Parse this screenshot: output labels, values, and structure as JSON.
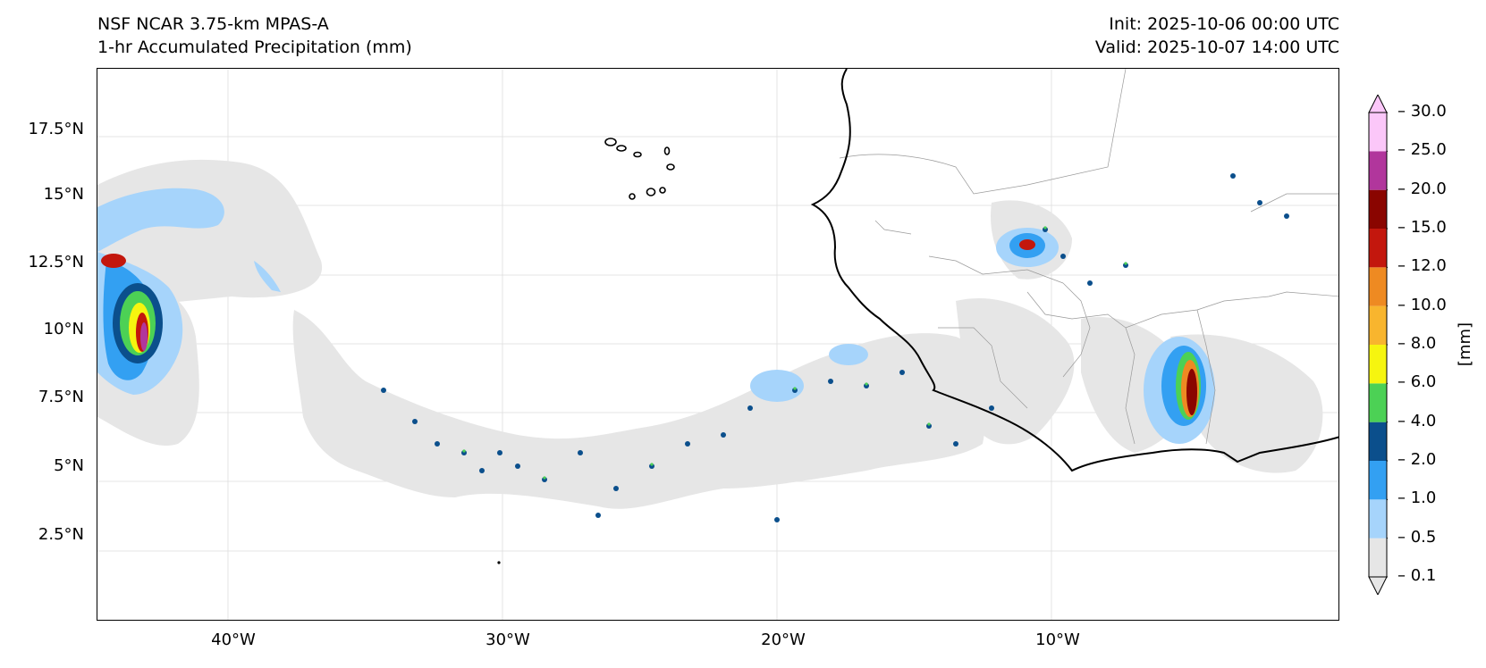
{
  "titles": {
    "model": "NSF NCAR 3.75-km MPAS-A",
    "field": "1-hr Accumulated Precipitation (mm)",
    "init": "Init: 2025-10-06 00:00 UTC",
    "valid": "Valid: 2025-10-07 14:00 UTC"
  },
  "axes": {
    "lat_labels": [
      "17.5°N",
      "15°N",
      "12.5°N",
      "10°N",
      "7.5°N",
      "5°N",
      "2.5°N"
    ],
    "lon_labels": [
      "40°W",
      "30°W",
      "20°W",
      "10°W"
    ]
  },
  "colorbar": {
    "unit": "[mm]",
    "levels": [
      "0.1",
      "0.5",
      "1.0",
      "2.0",
      "4.0",
      "6.0",
      "8.0",
      "10.0",
      "12.0",
      "15.0",
      "20.0",
      "25.0",
      "30.0"
    ],
    "colors": [
      "#e6e6e6",
      "#a6d4fb",
      "#33a0f2",
      "#0b4f8c",
      "#4cd155",
      "#f6f50f",
      "#f8b52e",
      "#ee8a22",
      "#c3170d",
      "#8a0500",
      "#b1369c",
      "#fbc7f9"
    ]
  }
}
